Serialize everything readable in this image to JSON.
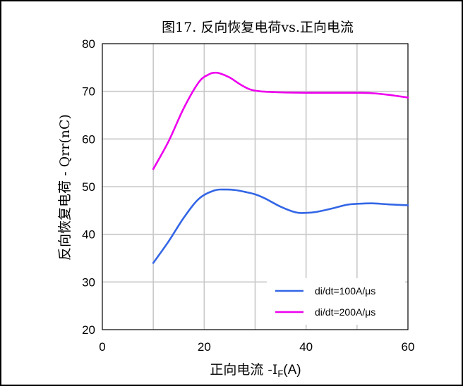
{
  "chart_data": {
    "type": "line",
    "title": "图17. 反向恢复电荷vs.正向电流",
    "xlabel": "正向电流 -I",
    "xlabel_sub": "F",
    "xlabel_suffix": "(A)",
    "ylabel": "反向恢复电荷 - Qrr(nC)",
    "xlim": [
      0,
      60
    ],
    "ylim": [
      20,
      80
    ],
    "xticks": [
      0,
      20,
      40,
      60
    ],
    "yticks": [
      20,
      30,
      40,
      50,
      60,
      70,
      80
    ],
    "x_minor_grid_step": 10,
    "grid": true,
    "legend_position": "bottom-right",
    "series": [
      {
        "name": "di/dt=100A/μs",
        "color": "#3366e6",
        "x": [
          10,
          13,
          16,
          19,
          22,
          24,
          26,
          28,
          30,
          32,
          35,
          38,
          40,
          42,
          45,
          48,
          50,
          53,
          56,
          60
        ],
        "y": [
          34.0,
          38.5,
          43.5,
          47.5,
          49.2,
          49.4,
          49.3,
          48.9,
          48.4,
          47.5,
          45.8,
          44.6,
          44.5,
          44.7,
          45.4,
          46.2,
          46.4,
          46.5,
          46.3,
          46.1
        ]
      },
      {
        "name": "di/dt=200A/μs",
        "color": "#ee00ee",
        "x": [
          10,
          13,
          16,
          19,
          21,
          22,
          23,
          25,
          27,
          29,
          31,
          35,
          40,
          45,
          50,
          53,
          56,
          58,
          60
        ],
        "y": [
          53.7,
          59.5,
          66.5,
          72.0,
          73.6,
          73.9,
          73.8,
          72.9,
          71.5,
          70.4,
          70.0,
          69.8,
          69.7,
          69.7,
          69.7,
          69.6,
          69.3,
          69.0,
          68.7
        ]
      }
    ]
  }
}
